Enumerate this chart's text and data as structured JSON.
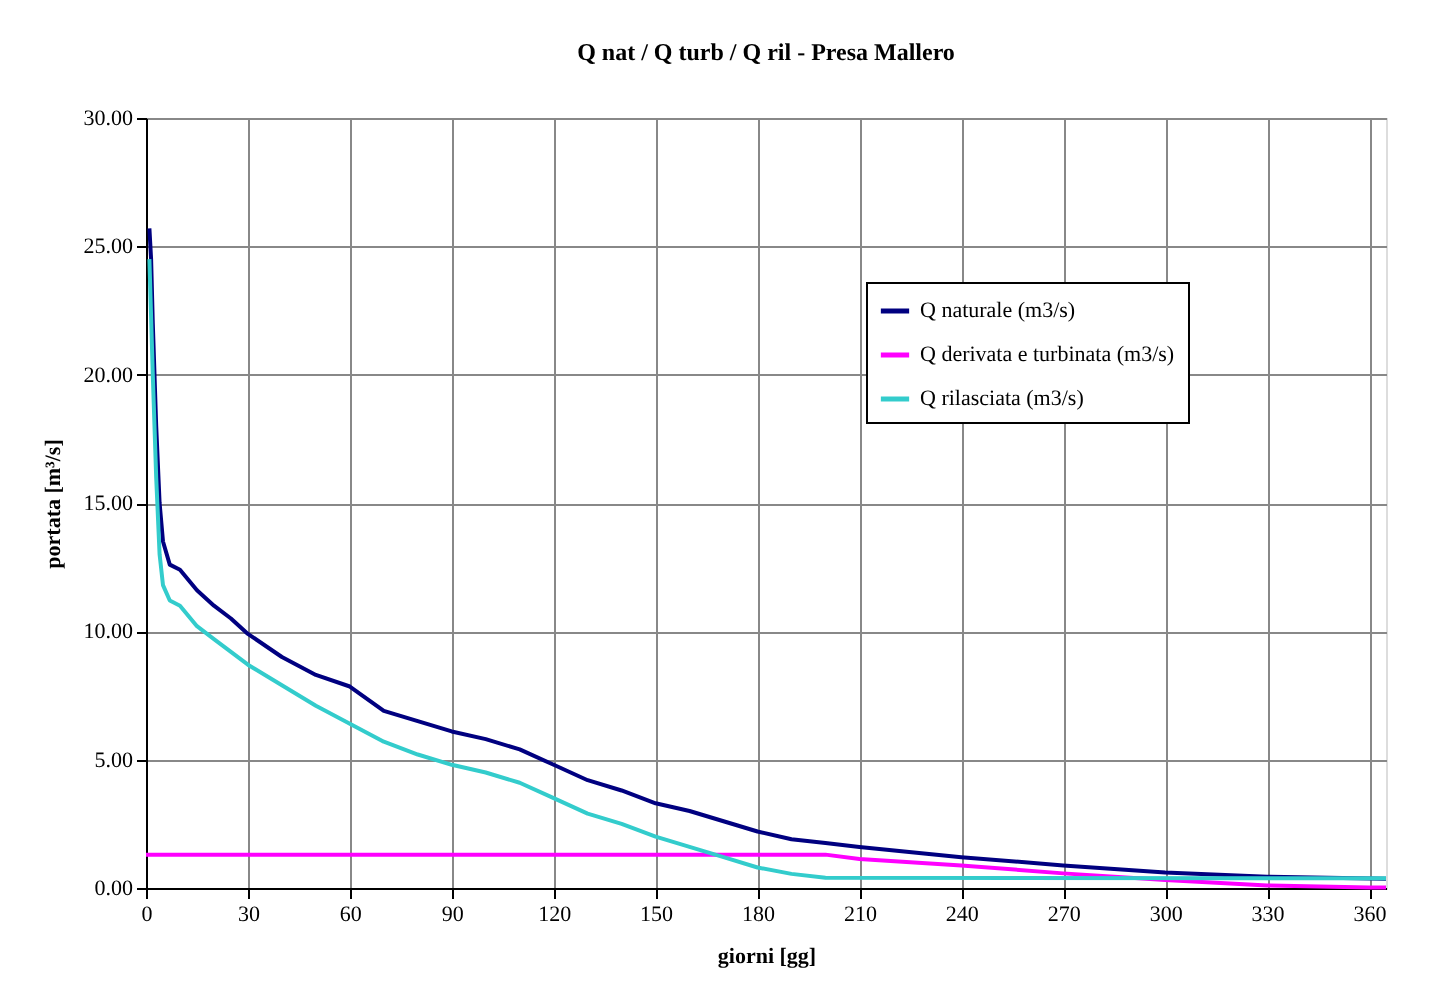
{
  "chart_data": {
    "type": "line",
    "title": "Q nat / Q turb / Q ril - Presa Mallero",
    "xlabel": "giorni [gg]",
    "ylabel": "portata [m³/s]",
    "xlim": [
      0,
      365
    ],
    "xticks": [
      0,
      30,
      60,
      90,
      120,
      150,
      180,
      210,
      240,
      270,
      300,
      330,
      360
    ],
    "ylim": [
      0,
      30
    ],
    "yticks": [
      {
        "value": 0,
        "label": "0.00"
      },
      {
        "value": 5,
        "label": "5.00"
      },
      {
        "value": 10,
        "label": "10.00"
      },
      {
        "value": 15,
        "label": "15.00"
      },
      {
        "value": 20,
        "label": "20.00"
      },
      {
        "value": 25,
        "label": "25.00"
      },
      {
        "value": 30,
        "label": "30.00"
      }
    ],
    "grid": true,
    "legend": "top right",
    "line_style": "solid",
    "marker": "none",
    "series": [
      {
        "name": "Q naturale (m3/s)",
        "color": "#000080",
        "x": [
          1,
          1.5,
          2,
          3,
          4,
          5,
          7,
          10,
          15,
          20,
          25,
          30,
          40,
          50,
          60,
          70,
          80,
          90,
          100,
          110,
          120,
          130,
          140,
          150,
          160,
          170,
          180,
          190,
          200,
          210,
          240,
          270,
          300,
          330,
          365
        ],
        "values": [
          25.7,
          24.5,
          22,
          18,
          15,
          13.5,
          12.6,
          12.4,
          11.6,
          11.0,
          10.5,
          9.9,
          9.0,
          8.3,
          7.85,
          6.9,
          6.5,
          6.1,
          5.8,
          5.4,
          4.8,
          4.2,
          3.8,
          3.3,
          3.0,
          2.6,
          2.2,
          1.9,
          1.75,
          1.6,
          1.2,
          0.88,
          0.6,
          0.44,
          0.36
        ]
      },
      {
        "name": "Q derivata e turbinata (m3/s)",
        "color": "#ff00ff",
        "x": [
          0,
          200,
          210,
          240,
          270,
          300,
          330,
          360,
          365
        ],
        "values": [
          1.3,
          1.3,
          1.13,
          0.88,
          0.57,
          0.31,
          0.1,
          0.02,
          0.02
        ]
      },
      {
        "name": "Q rilasciata (m3/s)",
        "color": "#33cccc",
        "x": [
          1,
          2,
          3,
          4,
          5,
          7,
          10,
          15,
          20,
          30,
          40,
          50,
          60,
          70,
          80,
          90,
          100,
          110,
          120,
          130,
          140,
          150,
          160,
          170,
          180,
          190,
          200,
          365
        ],
        "values": [
          24.5,
          20,
          16,
          13,
          11.8,
          11.2,
          11.0,
          10.2,
          9.7,
          8.7,
          7.9,
          7.1,
          6.4,
          5.7,
          5.2,
          4.8,
          4.5,
          4.1,
          3.5,
          2.9,
          2.5,
          2.0,
          1.6,
          1.2,
          0.8,
          0.55,
          0.4,
          0.38
        ]
      }
    ]
  }
}
